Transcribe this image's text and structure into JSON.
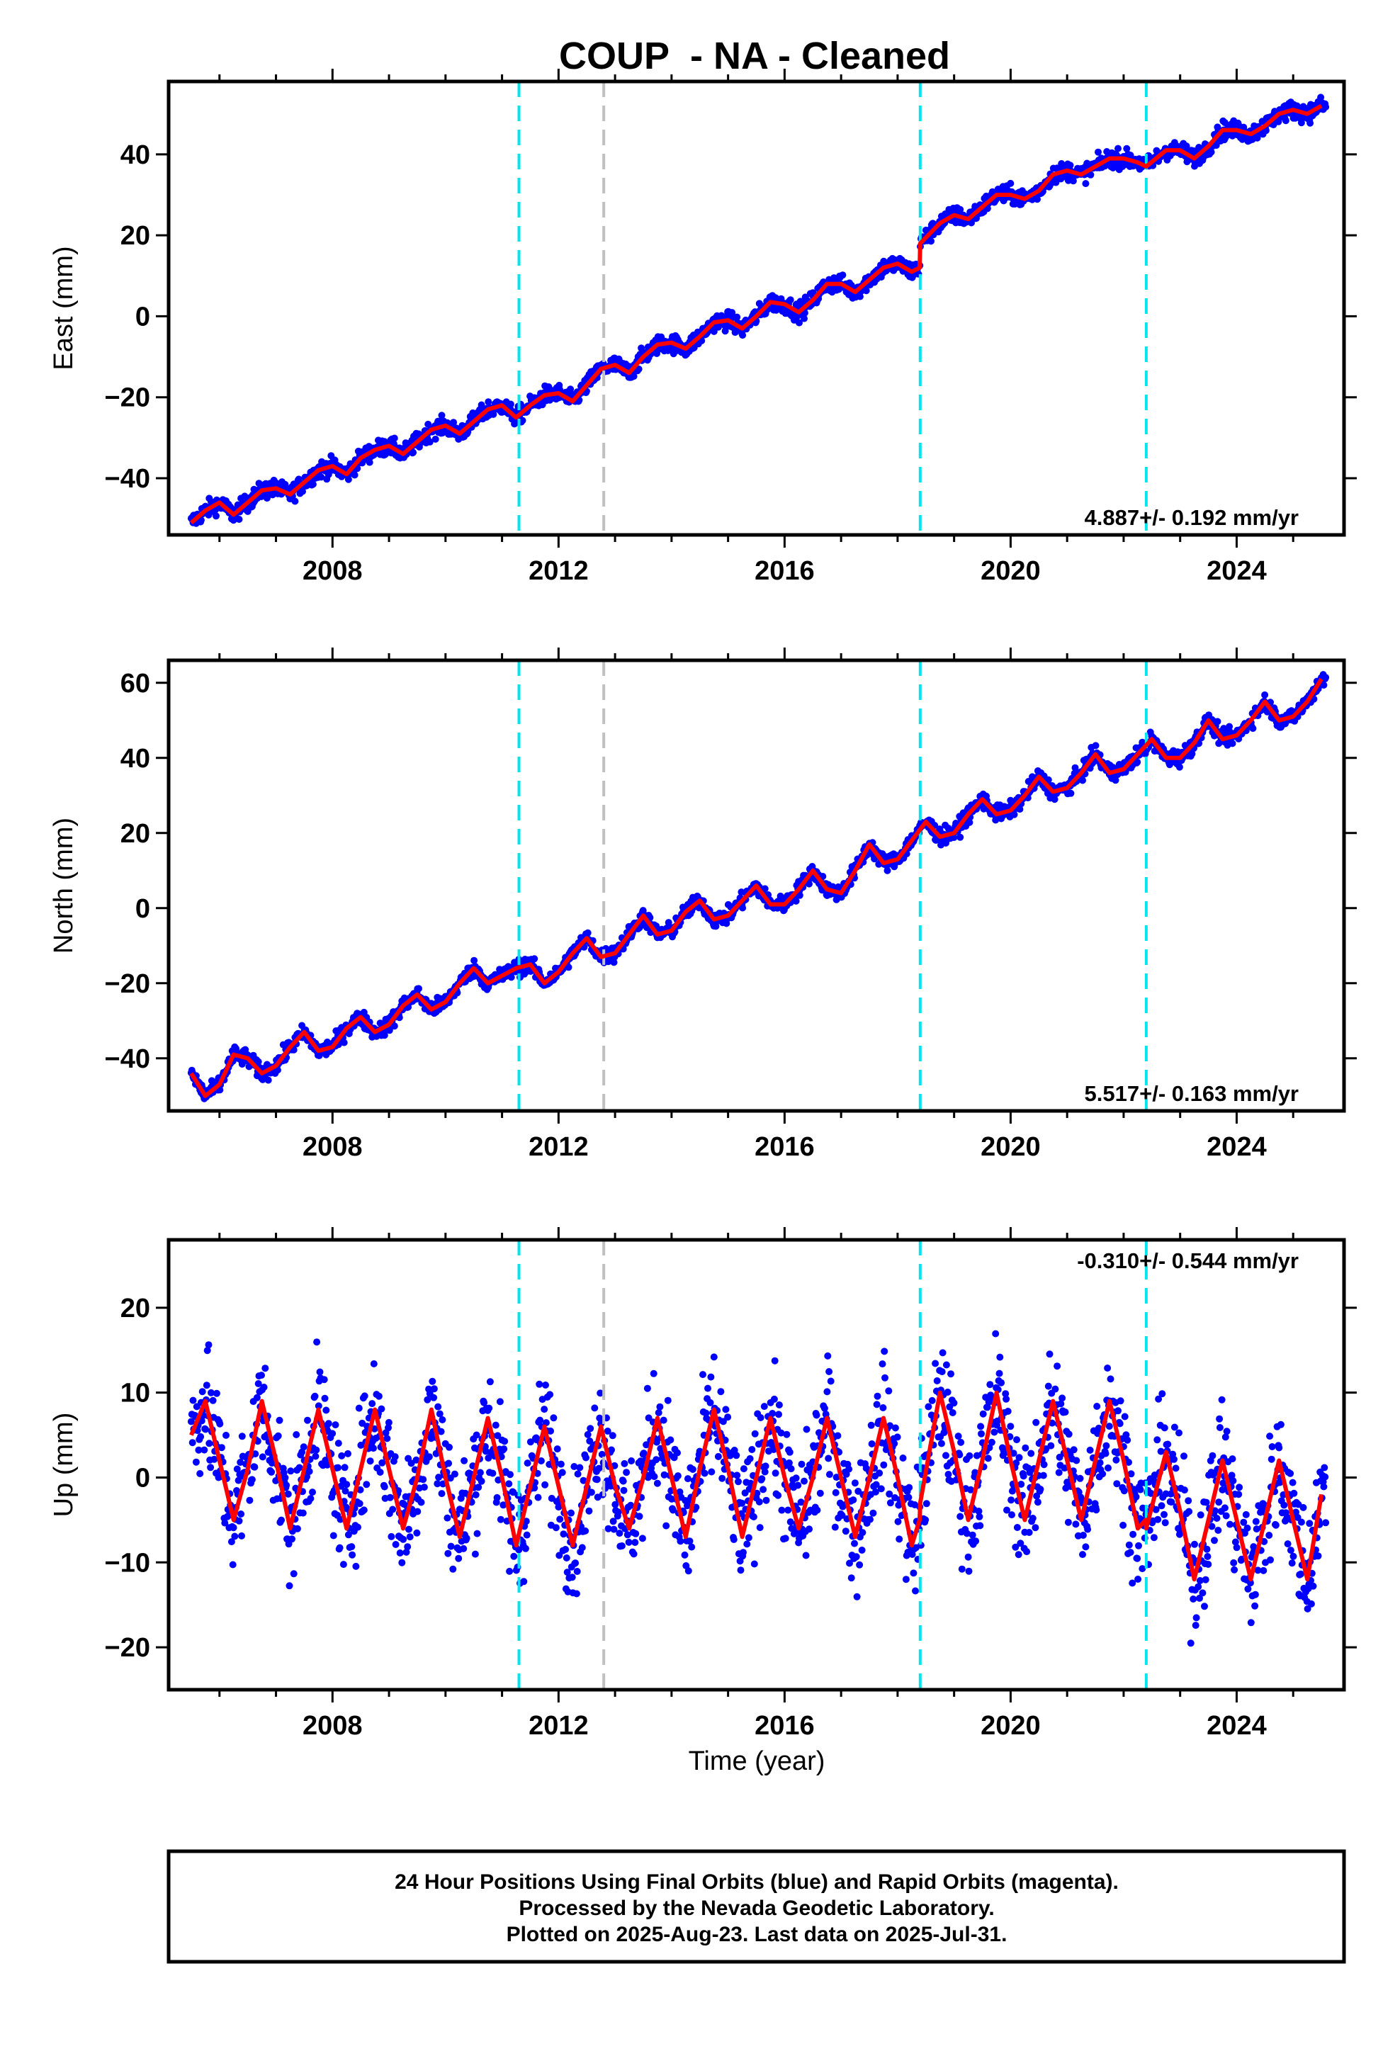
{
  "figure": {
    "title": "COUP  - NA - Cleaned",
    "xlabel": "Time (year)",
    "caption": [
      "24 Hour Positions Using Final Orbits (blue) and Rapid Orbits (magenta).",
      "Processed by the Nevada Geodetic Laboratory.",
      "Plotted on 2025-Aug-23. Last data on 2025-Jul-31."
    ],
    "colors": {
      "data_points": "#0000ff",
      "model_fit": "#ff0000",
      "equipment_change": "#00e5ee",
      "other_event": "#c0c0c0",
      "frame": "#000000"
    }
  },
  "chart_data": [
    {
      "type": "scatter",
      "component": "east",
      "ylabel": "East (mm)",
      "rate_label": "4.887+/- 0.192 mm/yr",
      "rate_position": "bottom-right",
      "xlim": [
        2005.1,
        2025.9
      ],
      "ylim": [
        -54,
        58
      ],
      "x_ticks": [
        2008,
        2012,
        2016,
        2020,
        2024
      ],
      "y_ticks": [
        -40,
        -20,
        0,
        20,
        40
      ],
      "grid": false,
      "event_lines": [
        {
          "x": 2011.3,
          "kind": "equipment_change"
        },
        {
          "x": 2012.8,
          "kind": "other_event"
        },
        {
          "x": 2018.4,
          "kind": "equipment_change"
        },
        {
          "x": 2022.4,
          "kind": "equipment_change"
        }
      ],
      "model_fit": {
        "x": [
          2005.5,
          2005.75,
          2006.0,
          2006.25,
          2006.5,
          2006.75,
          2007.0,
          2007.25,
          2007.5,
          2007.75,
          2008.0,
          2008.25,
          2008.5,
          2008.75,
          2009.0,
          2009.25,
          2009.5,
          2009.75,
          2010.0,
          2010.25,
          2010.5,
          2010.75,
          2011.0,
          2011.25,
          2011.5,
          2011.75,
          2012.0,
          2012.25,
          2012.5,
          2012.75,
          2013.0,
          2013.25,
          2013.5,
          2013.75,
          2014.0,
          2014.25,
          2014.5,
          2014.75,
          2015.0,
          2015.25,
          2015.5,
          2015.75,
          2016.0,
          2016.25,
          2016.5,
          2016.75,
          2017.0,
          2017.25,
          2017.5,
          2017.75,
          2018.0,
          2018.25,
          2018.39,
          2018.4,
          2018.75,
          2019.0,
          2019.25,
          2019.5,
          2019.75,
          2020.0,
          2020.25,
          2020.5,
          2020.75,
          2021.0,
          2021.25,
          2021.5,
          2021.75,
          2022.0,
          2022.25,
          2022.4,
          2022.75,
          2023.0,
          2023.25,
          2023.5,
          2023.75,
          2024.0,
          2024.25,
          2024.5,
          2024.75,
          2025.0,
          2025.25,
          2025.5
        ],
        "y": [
          -51,
          -48,
          -46,
          -49,
          -46,
          -43,
          -42.5,
          -44,
          -41,
          -38,
          -37,
          -39,
          -35,
          -33,
          -32,
          -34,
          -31,
          -28,
          -27,
          -29,
          -26,
          -23,
          -22,
          -25,
          -22,
          -19.5,
          -19,
          -21,
          -17,
          -13,
          -12,
          -14,
          -10,
          -7,
          -6.5,
          -8,
          -5,
          -1.5,
          -1,
          -3,
          0,
          3.5,
          3,
          1,
          4,
          8,
          8,
          6,
          9,
          12,
          13,
          11,
          12,
          18,
          23,
          25,
          24,
          27,
          30,
          30,
          29,
          31,
          35,
          36,
          35,
          37,
          39,
          39,
          38,
          37,
          41,
          41,
          39,
          42,
          46,
          46,
          45,
          47,
          50,
          51,
          50,
          52
        ]
      }
    },
    {
      "type": "scatter",
      "component": "north",
      "ylabel": "North (mm)",
      "rate_label": "5.517+/- 0.163 mm/yr",
      "rate_position": "bottom-right",
      "xlim": [
        2005.1,
        2025.9
      ],
      "ylim": [
        -54,
        66
      ],
      "x_ticks": [
        2008,
        2012,
        2016,
        2020,
        2024
      ],
      "y_ticks": [
        -40,
        -20,
        0,
        20,
        40,
        60
      ],
      "grid": false,
      "event_lines": [
        {
          "x": 2011.3,
          "kind": "equipment_change"
        },
        {
          "x": 2012.8,
          "kind": "other_event"
        },
        {
          "x": 2018.4,
          "kind": "equipment_change"
        },
        {
          "x": 2022.4,
          "kind": "equipment_change"
        }
      ],
      "model_fit": {
        "x": [
          2005.5,
          2005.75,
          2006.0,
          2006.25,
          2006.5,
          2006.75,
          2007.0,
          2007.25,
          2007.5,
          2007.75,
          2008.0,
          2008.25,
          2008.5,
          2008.75,
          2009.0,
          2009.25,
          2009.5,
          2009.75,
          2010.0,
          2010.25,
          2010.5,
          2010.75,
          2011.0,
          2011.25,
          2011.5,
          2011.75,
          2012.0,
          2012.25,
          2012.5,
          2012.75,
          2013.0,
          2013.25,
          2013.5,
          2013.75,
          2014.0,
          2014.25,
          2014.5,
          2014.75,
          2015.0,
          2015.25,
          2015.5,
          2015.75,
          2016.0,
          2016.25,
          2016.5,
          2016.75,
          2017.0,
          2017.25,
          2017.5,
          2017.75,
          2018.0,
          2018.25,
          2018.5,
          2018.75,
          2019.0,
          2019.25,
          2019.5,
          2019.75,
          2020.0,
          2020.25,
          2020.5,
          2020.75,
          2021.0,
          2021.25,
          2021.5,
          2021.75,
          2022.0,
          2022.25,
          2022.5,
          2022.75,
          2023.0,
          2023.25,
          2023.5,
          2023.75,
          2024.0,
          2024.25,
          2024.5,
          2024.75,
          2025.0,
          2025.25,
          2025.5
        ],
        "y": [
          -44,
          -50,
          -47,
          -39,
          -40,
          -44,
          -42,
          -37,
          -33,
          -38,
          -37,
          -32,
          -29,
          -33,
          -31,
          -26,
          -23,
          -27,
          -25,
          -20,
          -16,
          -20,
          -18,
          -16,
          -15,
          -20,
          -17,
          -12,
          -8,
          -13,
          -12,
          -7,
          -2,
          -7,
          -6,
          -1,
          2,
          -3,
          -2,
          2,
          6,
          1,
          1,
          5,
          10,
          5,
          4,
          10,
          17,
          12,
          13,
          18,
          23,
          19,
          20,
          25,
          29,
          25,
          26,
          30,
          35,
          31,
          32,
          36,
          41,
          36,
          37,
          41,
          45,
          40,
          40,
          44,
          50,
          45,
          46,
          50,
          55,
          50,
          51,
          55,
          61
        ]
      }
    },
    {
      "type": "scatter",
      "component": "up",
      "ylabel": "Up (mm)",
      "rate_label": "-0.310+/- 0.544 mm/yr",
      "rate_position": "top-right",
      "xlim": [
        2005.1,
        2025.9
      ],
      "ylim": [
        -25,
        28
      ],
      "x_ticks": [
        2008,
        2012,
        2016,
        2020,
        2024
      ],
      "y_ticks": [
        -20,
        -10,
        0,
        10,
        20
      ],
      "grid": false,
      "event_lines": [
        {
          "x": 2011.3,
          "kind": "equipment_change"
        },
        {
          "x": 2012.8,
          "kind": "other_event"
        },
        {
          "x": 2018.4,
          "kind": "equipment_change"
        },
        {
          "x": 2022.4,
          "kind": "equipment_change"
        }
      ],
      "model_fit": {
        "x": [
          2005.5,
          2005.75,
          2006.0,
          2006.25,
          2006.5,
          2006.75,
          2007.0,
          2007.25,
          2007.5,
          2007.75,
          2008.0,
          2008.25,
          2008.5,
          2008.75,
          2009.0,
          2009.25,
          2009.5,
          2009.75,
          2010.0,
          2010.25,
          2010.5,
          2010.75,
          2011.0,
          2011.25,
          2011.5,
          2011.75,
          2012.0,
          2012.25,
          2012.5,
          2012.75,
          2013.0,
          2013.25,
          2013.5,
          2013.75,
          2014.0,
          2014.25,
          2014.5,
          2014.75,
          2015.0,
          2015.25,
          2015.5,
          2015.75,
          2016.0,
          2016.25,
          2016.5,
          2016.75,
          2017.0,
          2017.25,
          2017.5,
          2017.75,
          2018.0,
          2018.25,
          2018.39,
          2018.4,
          2018.75,
          2019.0,
          2019.25,
          2019.5,
          2019.75,
          2020.0,
          2020.25,
          2020.5,
          2020.75,
          2021.0,
          2021.25,
          2021.5,
          2021.75,
          2022.0,
          2022.25,
          2022.39,
          2022.4,
          2022.75,
          2023.0,
          2023.25,
          2023.5,
          2023.75,
          2024.0,
          2024.25,
          2024.5,
          2024.75,
          2025.0,
          2025.25,
          2025.5
        ],
        "y": [
          5,
          9,
          2,
          -5,
          1,
          9,
          2,
          -6,
          1,
          8,
          1,
          -6,
          1,
          8,
          1,
          -6,
          0,
          8,
          0,
          -7,
          0,
          7,
          0,
          -8,
          -1,
          6,
          -1,
          -8,
          -1,
          6,
          -1,
          -6,
          0,
          7,
          0,
          -7,
          1,
          8,
          1,
          -7,
          0,
          7,
          0,
          -6,
          0,
          7,
          0,
          -7,
          0,
          7,
          0,
          -8,
          -5,
          -3,
          10,
          3,
          -5,
          2,
          10,
          2,
          -5,
          2,
          9,
          2,
          -5,
          2,
          9,
          2,
          -6,
          -5,
          -6,
          3,
          -4,
          -12,
          -5,
          2,
          -5,
          -12,
          -5,
          2,
          -5,
          -12,
          -2
        ]
      }
    }
  ]
}
